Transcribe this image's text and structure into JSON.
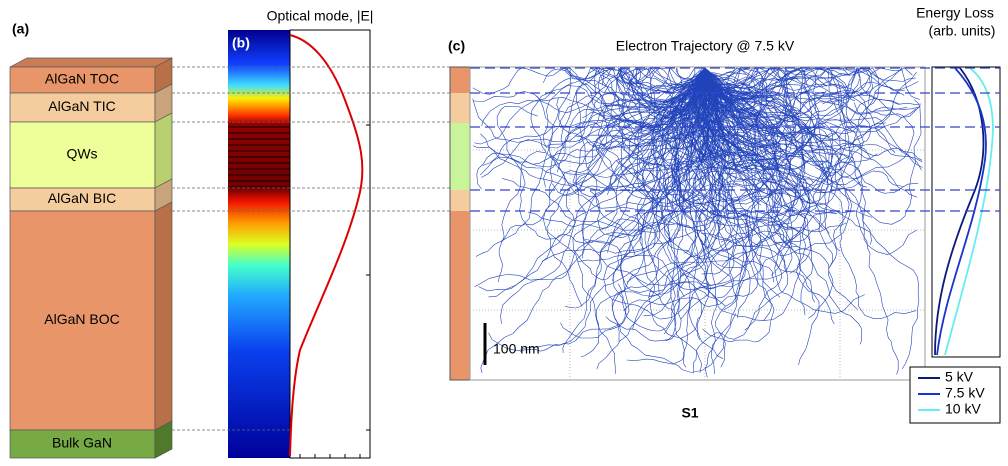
{
  "panel_a": {
    "label": "(a)",
    "layers": [
      "AlGaN TOC",
      "AlGaN TIC",
      "QWs",
      "AlGaN BIC",
      "AlGaN BOC",
      "Bulk GaN"
    ]
  },
  "panel_b": {
    "label": "(b)",
    "title": "Optical mode, |E|"
  },
  "panel_c": {
    "label": "(c)",
    "title": "Electron Trajectory @ 7.5 kV",
    "scale_bar": "100 nm",
    "energy_loss_title": [
      "Energy Loss",
      "(arb. units)"
    ],
    "legend": [
      {
        "name": "5 kV",
        "color": "#0a1a7a"
      },
      {
        "name": "7.5 kV",
        "color": "#1a33cc"
      },
      {
        "name": "10 kV",
        "color": "#66eeee"
      }
    ]
  },
  "sample": "S1"
}
